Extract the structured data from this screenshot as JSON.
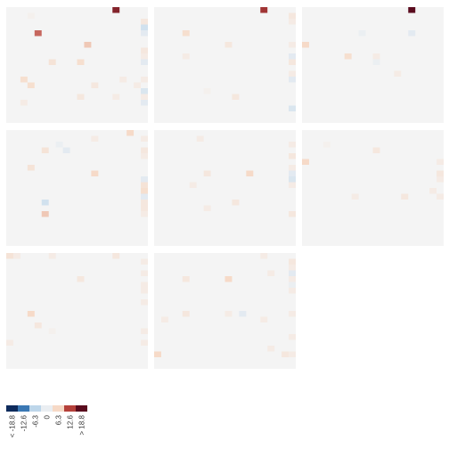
{
  "chart_data": {
    "type": "heatmap",
    "grid": {
      "rows": 3,
      "cols": 3,
      "panel_count": 8
    },
    "cells_per_side": 20,
    "background_value": 0,
    "colors": {
      "neutral": "#f4f4f4",
      "scale": [
        "#0e2b5c",
        "#3a78b4",
        "#bdd6ea",
        "#eaeef2",
        "#f6d9c6",
        "#b5403a",
        "#5a0b1e"
      ]
    },
    "legend": {
      "ticks": [
        "< -18.8",
        "-12.6",
        "-6.3",
        "0",
        "6.3",
        "12.6",
        "> 18.8"
      ]
    },
    "panels": [
      {
        "cells": [
          [
            15,
            0,
            16
          ],
          [
            19,
            2,
            3
          ],
          [
            19,
            3,
            -4
          ],
          [
            19,
            4,
            -2
          ],
          [
            4,
            4,
            11
          ],
          [
            11,
            6,
            7
          ],
          [
            19,
            7,
            3
          ],
          [
            19,
            8,
            2
          ],
          [
            6,
            9,
            4
          ],
          [
            10,
            9,
            5
          ],
          [
            19,
            9,
            -2
          ],
          [
            2,
            12,
            5
          ],
          [
            19,
            12,
            2
          ],
          [
            3,
            13,
            5
          ],
          [
            12,
            13,
            3
          ],
          [
            18,
            13,
            2
          ],
          [
            19,
            14,
            -3
          ],
          [
            10,
            15,
            3
          ],
          [
            15,
            15,
            2
          ],
          [
            19,
            15,
            2
          ],
          [
            2,
            16,
            2
          ],
          [
            19,
            16,
            -2
          ],
          [
            16,
            12,
            2
          ],
          [
            3,
            1,
            1
          ]
        ]
      },
      {
        "cells": [
          [
            15,
            0,
            14
          ],
          [
            19,
            1,
            3
          ],
          [
            19,
            2,
            2
          ],
          [
            4,
            4,
            5
          ],
          [
            10,
            6,
            3
          ],
          [
            19,
            6,
            2
          ],
          [
            19,
            8,
            -2
          ],
          [
            19,
            9,
            3
          ],
          [
            4,
            8,
            2
          ],
          [
            19,
            11,
            2
          ],
          [
            19,
            12,
            -2
          ],
          [
            11,
            15,
            3
          ],
          [
            19,
            17,
            -3
          ],
          [
            7,
            14,
            1
          ]
        ]
      },
      {
        "cells": [
          [
            15,
            0,
            22
          ],
          [
            8,
            4,
            -1
          ],
          [
            15,
            4,
            -2
          ],
          [
            0,
            6,
            6
          ],
          [
            6,
            8,
            5
          ],
          [
            10,
            8,
            2
          ],
          [
            10,
            9,
            -1
          ],
          [
            13,
            11,
            2
          ]
        ]
      },
      {
        "cells": [
          [
            17,
            0,
            6
          ],
          [
            12,
            1,
            2
          ],
          [
            19,
            1,
            2
          ],
          [
            7,
            2,
            -1
          ],
          [
            5,
            3,
            4
          ],
          [
            8,
            3,
            -2
          ],
          [
            19,
            3,
            3
          ],
          [
            19,
            4,
            2
          ],
          [
            3,
            6,
            4
          ],
          [
            12,
            7,
            6
          ],
          [
            19,
            8,
            -2
          ],
          [
            19,
            9,
            4
          ],
          [
            19,
            10,
            5
          ],
          [
            19,
            11,
            -2
          ],
          [
            19,
            12,
            3
          ],
          [
            5,
            12,
            -4
          ],
          [
            19,
            13,
            3
          ],
          [
            5,
            14,
            7
          ],
          [
            19,
            14,
            2
          ]
        ]
      },
      {
        "cells": [
          [
            6,
            1,
            2
          ],
          [
            19,
            2,
            2
          ],
          [
            19,
            4,
            3
          ],
          [
            19,
            6,
            2
          ],
          [
            7,
            7,
            3
          ],
          [
            13,
            7,
            6
          ],
          [
            19,
            7,
            -2
          ],
          [
            19,
            8,
            -3
          ],
          [
            5,
            9,
            2
          ],
          [
            19,
            9,
            2
          ],
          [
            11,
            12,
            3
          ],
          [
            7,
            13,
            2
          ],
          [
            19,
            14,
            3
          ]
        ]
      },
      {
        "cells": [
          [
            10,
            3,
            3
          ],
          [
            0,
            5,
            6
          ],
          [
            19,
            5,
            2
          ],
          [
            19,
            7,
            3
          ],
          [
            19,
            8,
            2
          ],
          [
            18,
            10,
            2
          ],
          [
            7,
            11,
            2
          ],
          [
            14,
            11,
            3
          ],
          [
            19,
            11,
            2
          ],
          [
            3,
            2,
            1
          ]
        ]
      },
      {
        "cells": [
          [
            0,
            0,
            4
          ],
          [
            1,
            0,
            2
          ],
          [
            6,
            0,
            2
          ],
          [
            15,
            0,
            3
          ],
          [
            19,
            1,
            2
          ],
          [
            19,
            3,
            2
          ],
          [
            10,
            4,
            3
          ],
          [
            19,
            5,
            2
          ],
          [
            19,
            6,
            2
          ],
          [
            19,
            8,
            2
          ],
          [
            3,
            10,
            6
          ],
          [
            4,
            12,
            3
          ],
          [
            19,
            13,
            2
          ],
          [
            0,
            15,
            2
          ],
          [
            19,
            15,
            2
          ],
          [
            6,
            13,
            1
          ]
        ]
      },
      {
        "cells": [
          [
            15,
            0,
            2
          ],
          [
            19,
            1,
            3
          ],
          [
            19,
            2,
            2
          ],
          [
            19,
            3,
            -2
          ],
          [
            4,
            4,
            3
          ],
          [
            10,
            4,
            6
          ],
          [
            19,
            4,
            2
          ],
          [
            19,
            5,
            -1
          ],
          [
            16,
            3,
            2
          ],
          [
            19,
            6,
            2
          ],
          [
            10,
            10,
            2
          ],
          [
            4,
            10,
            3
          ],
          [
            12,
            10,
            -2
          ],
          [
            19,
            10,
            2
          ],
          [
            15,
            11,
            2
          ],
          [
            19,
            14,
            2
          ],
          [
            0,
            17,
            6
          ],
          [
            16,
            16,
            2
          ],
          [
            18,
            17,
            3
          ],
          [
            19,
            17,
            2
          ],
          [
            1,
            11,
            2
          ]
        ]
      }
    ]
  }
}
